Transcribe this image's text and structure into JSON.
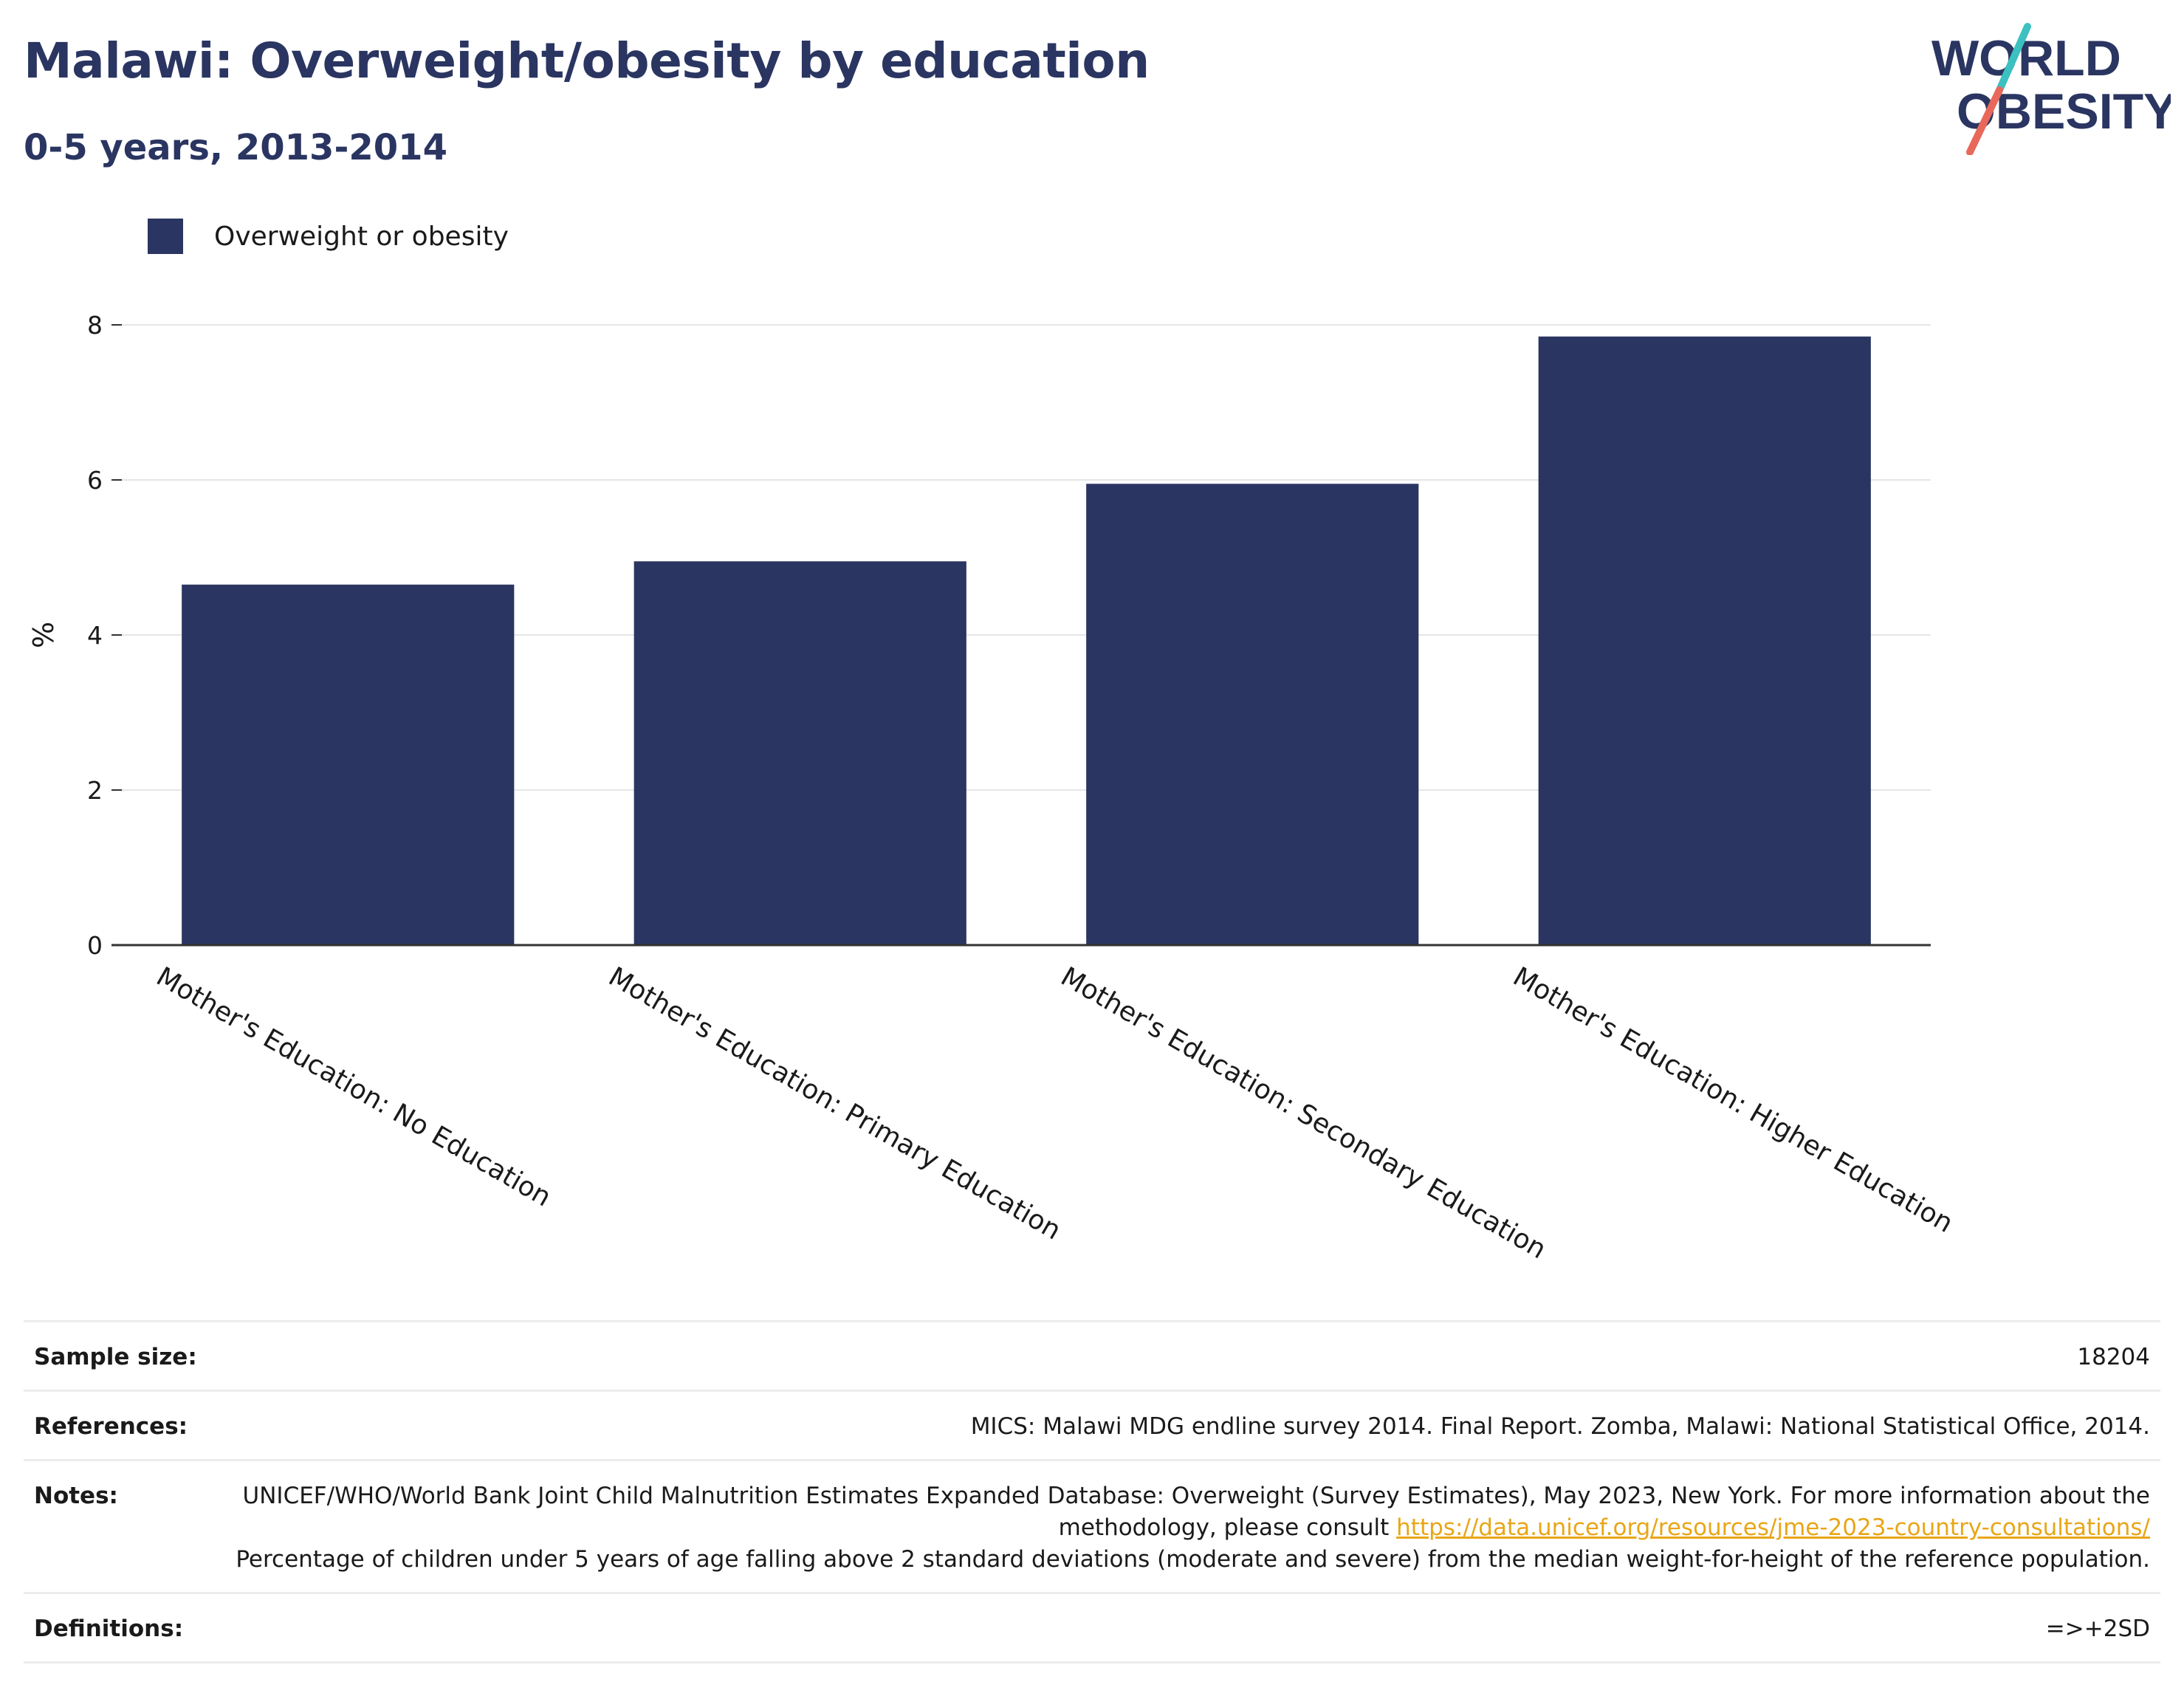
{
  "header": {
    "title": "Malawi: Overweight/obesity by education",
    "subtitle": "0-5 years, 2013-2014"
  },
  "logo": {
    "line1": "WORLD",
    "line2": "OBESITY",
    "colors": {
      "text": "#2a3561",
      "slash_top": "#3cc0c0",
      "slash_bottom": "#e8695a"
    }
  },
  "legend": {
    "label": "Overweight or obesity",
    "color": "#2a3561"
  },
  "chart_data": {
    "type": "bar",
    "categories": [
      "Mother's Education: No Education",
      "Mother's Education: Primary Education",
      "Mother's Education: Secondary Education",
      "Mother's Education: Higher Education"
    ],
    "series": [
      {
        "name": "Overweight or obesity",
        "values": [
          4.65,
          4.95,
          5.95,
          7.85
        ],
        "color": "#2a3561"
      }
    ],
    "ylabel": "%",
    "xlabel": "",
    "ylim": [
      0,
      8
    ],
    "yticks": [
      0,
      2,
      4,
      6,
      8
    ],
    "grid": true,
    "legend": "top-left"
  },
  "meta": {
    "sample_size": {
      "label": "Sample size:",
      "value": "18204"
    },
    "references": {
      "label": "References:",
      "value": "MICS: Malawi MDG endline survey 2014. Final Report. Zomba, Malawi: National Statistical Office, 2014."
    },
    "notes": {
      "label": "Notes:",
      "part1": "UNICEF/WHO/World Bank Joint Child Malnutrition Estimates Expanded Database: Overweight (Survey Estimates), May 2023, New York. For more information about the methodology, please consult",
      "link": "https://data.unicef.org/resources/jme-2023-country-consultations/",
      "part2": "Percentage of children under 5 years of age falling above 2 standard deviations (moderate and severe) from the median weight-for-height of the reference population."
    },
    "definitions": {
      "label": "Definitions:",
      "value": "=>+2SD"
    }
  }
}
